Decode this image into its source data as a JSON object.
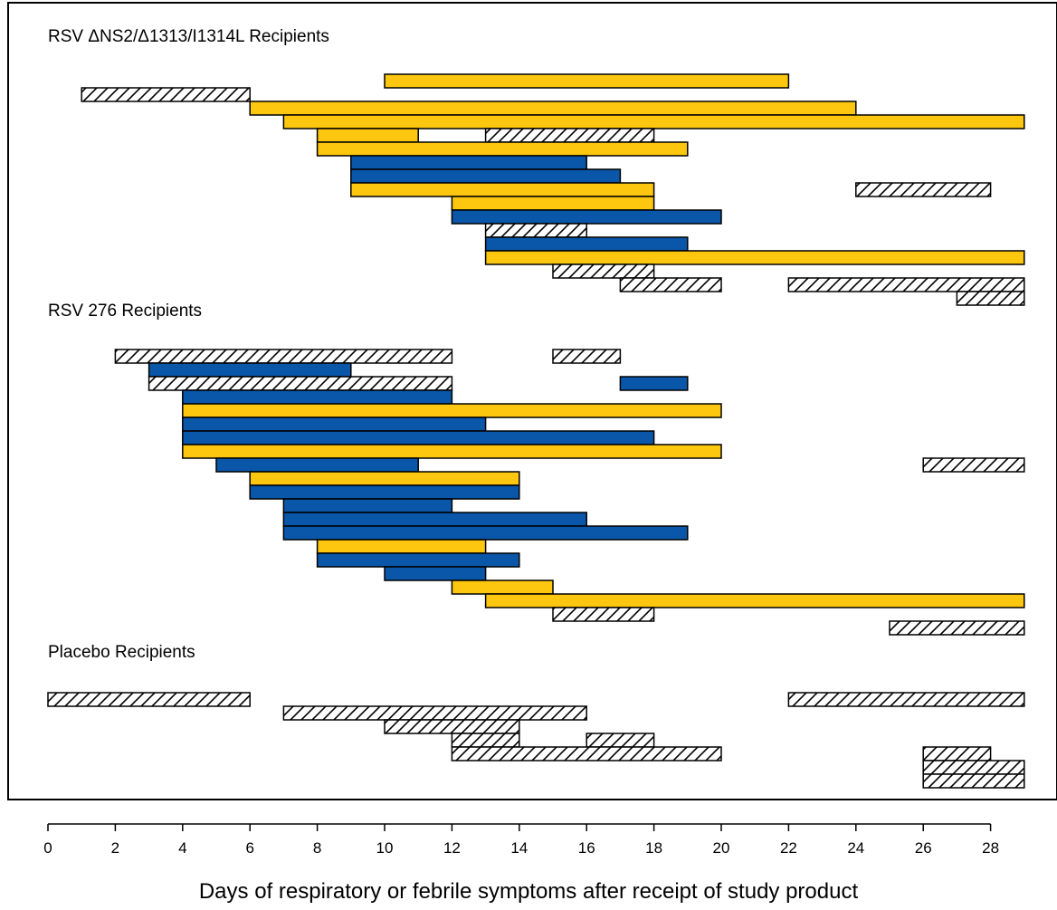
{
  "chart_data": {
    "type": "bar",
    "orientation": "horizontal-range",
    "xlabel": "Days of respiratory or febrile symptoms after receipt of study product",
    "xlim": [
      0,
      29
    ],
    "xticks": [
      0,
      2,
      4,
      6,
      8,
      10,
      12,
      14,
      16,
      18,
      20,
      22,
      24,
      26,
      28
    ],
    "grid": false,
    "legend": "none",
    "colors": {
      "yellow": "#FDC70F",
      "blue": "#0A56A8",
      "hatched": "#ffffff",
      "outline": "#000000"
    },
    "groups": [
      {
        "label": "RSV ΔNS2/Δ1313/I1314L Recipients",
        "bars": [
          {
            "row": 0,
            "start": 10,
            "end": 22,
            "style": "yellow"
          },
          {
            "row": 1,
            "start": 1,
            "end": 6,
            "style": "hatched"
          },
          {
            "row": 2,
            "start": 6,
            "end": 24,
            "style": "yellow"
          },
          {
            "row": 3,
            "start": 7,
            "end": 29,
            "style": "yellow"
          },
          {
            "row": 4,
            "start": 8,
            "end": 11,
            "style": "yellow"
          },
          {
            "row": 4,
            "start": 13,
            "end": 18,
            "style": "hatched"
          },
          {
            "row": 5,
            "start": 8,
            "end": 19,
            "style": "yellow"
          },
          {
            "row": 6,
            "start": 9,
            "end": 16,
            "style": "blue"
          },
          {
            "row": 7,
            "start": 9,
            "end": 17,
            "style": "blue"
          },
          {
            "row": 8,
            "start": 9,
            "end": 18,
            "style": "yellow"
          },
          {
            "row": 8,
            "start": 24,
            "end": 28,
            "style": "hatched"
          },
          {
            "row": 9,
            "start": 12,
            "end": 18,
            "style": "yellow"
          },
          {
            "row": 10,
            "start": 12,
            "end": 20,
            "style": "blue"
          },
          {
            "row": 11,
            "start": 13,
            "end": 16,
            "style": "hatched"
          },
          {
            "row": 12,
            "start": 13,
            "end": 19,
            "style": "blue"
          },
          {
            "row": 13,
            "start": 13,
            "end": 29,
            "style": "yellow"
          },
          {
            "row": 14,
            "start": 15,
            "end": 18,
            "style": "hatched"
          },
          {
            "row": 15,
            "start": 17,
            "end": 20,
            "style": "hatched"
          },
          {
            "row": 15,
            "start": 22,
            "end": 29,
            "style": "hatched"
          },
          {
            "row": 16,
            "start": 27,
            "end": 29,
            "style": "hatched"
          }
        ]
      },
      {
        "label": "RSV 276 Recipients",
        "bars": [
          {
            "row": 0,
            "start": 2,
            "end": 12,
            "style": "hatched"
          },
          {
            "row": 0,
            "start": 15,
            "end": 17,
            "style": "hatched"
          },
          {
            "row": 1,
            "start": 3,
            "end": 9,
            "style": "blue"
          },
          {
            "row": 2,
            "start": 3,
            "end": 12,
            "style": "hatched"
          },
          {
            "row": 2,
            "start": 17,
            "end": 19,
            "style": "blue"
          },
          {
            "row": 3,
            "start": 4,
            "end": 12,
            "style": "blue"
          },
          {
            "row": 4,
            "start": 4,
            "end": 20,
            "style": "yellow"
          },
          {
            "row": 5,
            "start": 4,
            "end": 13,
            "style": "blue"
          },
          {
            "row": 6,
            "start": 4,
            "end": 18,
            "style": "blue"
          },
          {
            "row": 7,
            "start": 4,
            "end": 20,
            "style": "yellow"
          },
          {
            "row": 8,
            "start": 5,
            "end": 11,
            "style": "blue"
          },
          {
            "row": 8,
            "start": 26,
            "end": 29,
            "style": "hatched"
          },
          {
            "row": 9,
            "start": 6,
            "end": 14,
            "style": "yellow"
          },
          {
            "row": 10,
            "start": 6,
            "end": 14,
            "style": "blue"
          },
          {
            "row": 11,
            "start": 7,
            "end": 12,
            "style": "blue"
          },
          {
            "row": 12,
            "start": 7,
            "end": 16,
            "style": "blue"
          },
          {
            "row": 13,
            "start": 7,
            "end": 19,
            "style": "blue"
          },
          {
            "row": 14,
            "start": 8,
            "end": 13,
            "style": "yellow"
          },
          {
            "row": 15,
            "start": 8,
            "end": 14,
            "style": "blue"
          },
          {
            "row": 16,
            "start": 10,
            "end": 13,
            "style": "blue"
          },
          {
            "row": 17,
            "start": 12,
            "end": 15,
            "style": "yellow"
          },
          {
            "row": 18,
            "start": 13,
            "end": 29,
            "style": "yellow"
          },
          {
            "row": 19,
            "start": 15,
            "end": 18,
            "style": "hatched"
          },
          {
            "row": 20,
            "start": 25,
            "end": 29,
            "style": "hatched"
          }
        ]
      },
      {
        "label": "Placebo Recipients",
        "bars": [
          {
            "row": 0,
            "start": 0,
            "end": 6,
            "style": "hatched"
          },
          {
            "row": 0,
            "start": 22,
            "end": 29,
            "style": "hatched"
          },
          {
            "row": 1,
            "start": 7,
            "end": 16,
            "style": "hatched"
          },
          {
            "row": 2,
            "start": 10,
            "end": 14,
            "style": "hatched"
          },
          {
            "row": 3,
            "start": 12,
            "end": 14,
            "style": "hatched"
          },
          {
            "row": 3,
            "start": 16,
            "end": 18,
            "style": "hatched"
          },
          {
            "row": 4,
            "start": 12,
            "end": 20,
            "style": "hatched"
          },
          {
            "row": 4,
            "start": 26,
            "end": 28,
            "style": "hatched"
          },
          {
            "row": 5,
            "start": 26,
            "end": 29,
            "style": "hatched"
          },
          {
            "row": 6,
            "start": 26,
            "end": 29,
            "style": "hatched"
          }
        ]
      }
    ]
  }
}
